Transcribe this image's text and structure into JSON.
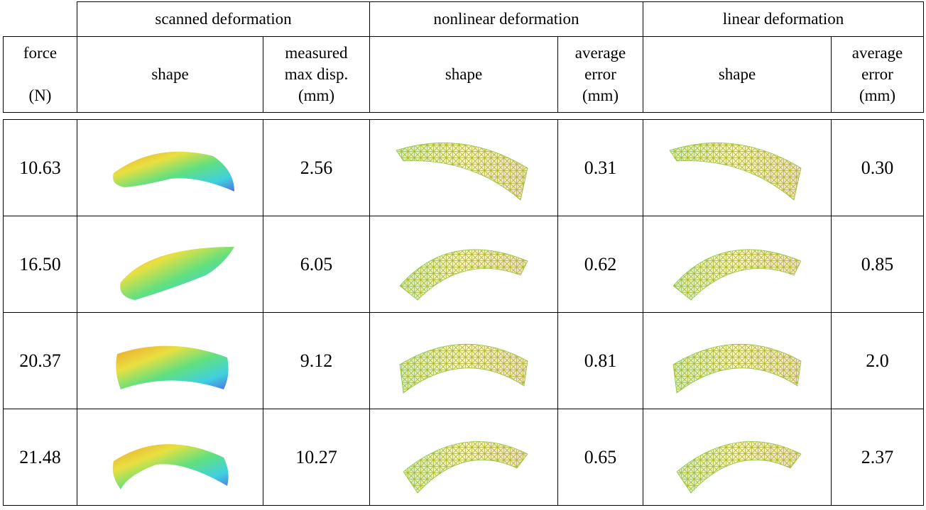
{
  "table": {
    "group_headers": [
      "scanned deformation",
      "nonlinear deformation",
      "linear deformation"
    ],
    "column_headers": [
      [
        "force",
        "",
        "(N)"
      ],
      [
        "shape"
      ],
      [
        "measured",
        "max disp.",
        "(mm)"
      ],
      [
        "shape"
      ],
      [
        "average",
        "error",
        "(mm)"
      ],
      [
        "shape"
      ],
      [
        "average",
        "error",
        "(mm)"
      ]
    ],
    "rows": [
      [
        "10.63",
        "2.56",
        "0.31",
        "0.30"
      ],
      [
        "16.50",
        "6.05",
        "0.62",
        "0.85"
      ],
      [
        "20.37",
        "9.12",
        "0.81",
        "2.0"
      ],
      [
        "21.48",
        "10.27",
        "0.65",
        "2.37"
      ]
    ]
  }
}
